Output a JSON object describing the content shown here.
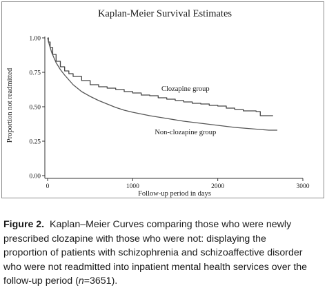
{
  "chart_data": {
    "type": "line",
    "title": "Kaplan-Meier Survival Estimates",
    "xlabel": "Follow-up period in days",
    "ylabel": "Proportion not readmitted",
    "xlim": [
      0,
      3000
    ],
    "ylim": [
      0,
      1
    ],
    "x_ticks": [
      0,
      1000,
      2000,
      3000
    ],
    "y_ticks": [
      "0.00",
      "0.25",
      "0.50",
      "0.75",
      "1.00"
    ],
    "grid": false,
    "legend": "none",
    "series": [
      {
        "name": "Clozapine group",
        "step": true,
        "color": "#444444",
        "x": [
          0,
          10,
          30,
          60,
          100,
          150,
          200,
          250,
          300,
          400,
          500,
          600,
          700,
          800,
          900,
          1000,
          1100,
          1200,
          1300,
          1400,
          1500,
          1600,
          1700,
          1800,
          1900,
          2000,
          2100,
          2200,
          2300,
          2400,
          2450,
          2500,
          2650
        ],
        "y": [
          1.0,
          0.97,
          0.93,
          0.88,
          0.83,
          0.79,
          0.76,
          0.74,
          0.72,
          0.69,
          0.66,
          0.645,
          0.635,
          0.625,
          0.61,
          0.6,
          0.585,
          0.58,
          0.565,
          0.555,
          0.545,
          0.535,
          0.525,
          0.52,
          0.51,
          0.505,
          0.49,
          0.48,
          0.47,
          0.47,
          0.465,
          0.435,
          0.435
        ]
      },
      {
        "name": "Non-clozapine group",
        "step": false,
        "color": "#555555",
        "x": [
          0,
          20,
          50,
          100,
          150,
          200,
          300,
          400,
          500,
          600,
          700,
          800,
          900,
          1000,
          1200,
          1400,
          1600,
          1800,
          2000,
          2200,
          2400,
          2600,
          2700
        ],
        "y": [
          1.0,
          0.95,
          0.89,
          0.82,
          0.77,
          0.73,
          0.66,
          0.61,
          0.575,
          0.545,
          0.52,
          0.495,
          0.475,
          0.46,
          0.435,
          0.415,
          0.395,
          0.38,
          0.365,
          0.35,
          0.34,
          0.33,
          0.33
        ]
      }
    ],
    "annotations": [
      {
        "text": "Clozapine group",
        "x": 1620,
        "y": 0.615
      },
      {
        "text": "Non-clozapine group",
        "x": 1620,
        "y": 0.3
      }
    ]
  },
  "caption": {
    "label": "Figure 2.",
    "line1": "Kaplan–Meier Curves comparing those who were newly",
    "line2": "prescribed clozapine with those who were not: displaying the",
    "line3": "proportion of patients with schizophrenia and schizoaffective disorder",
    "line4": "who were not readmitted into inpatient mental health services over the",
    "line5_a": "follow-up period (",
    "line5_n": "n",
    "line5_b": "=3651)."
  },
  "colors": {
    "panel_border": "#8a8a8a",
    "axis": "#333333",
    "text": "#1a1a1a"
  }
}
